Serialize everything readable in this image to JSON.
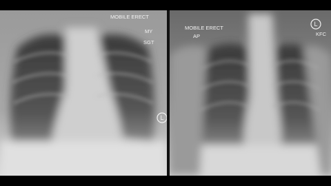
{
  "images": [
    {
      "labels": [
        "MOBILE ERECT",
        "MY",
        "SGT"
      ],
      "marker": "L"
    },
    {
      "labels": [
        "MOBILE ERECT",
        "AP",
        "KFC"
      ],
      "marker": "L"
    }
  ]
}
